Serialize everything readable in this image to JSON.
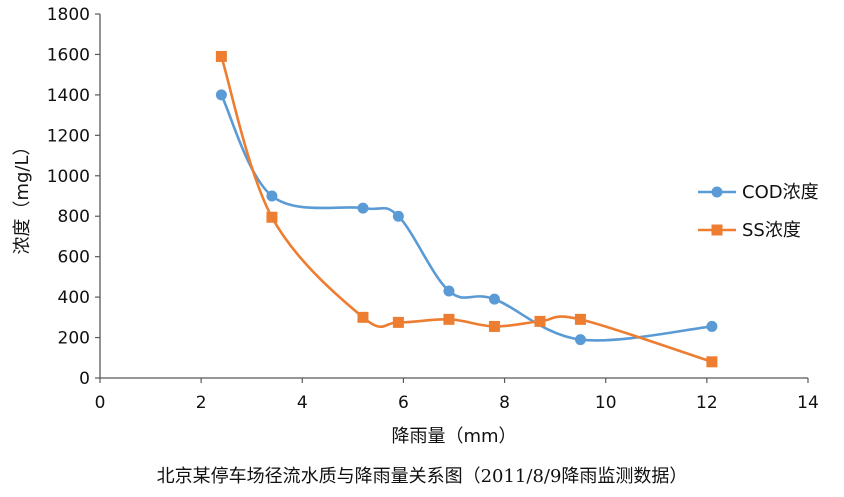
{
  "caption": "北京某停车场径流水质与降雨量关系图（2011/8/9降雨监测数据）",
  "chart_data": {
    "type": "line",
    "title": "",
    "xlabel": "降雨量（mm）",
    "ylabel": "浓度（mg/L）",
    "xlim": [
      0,
      14
    ],
    "ylim": [
      0,
      1800
    ],
    "xticks": [
      0,
      2,
      4,
      6,
      8,
      10,
      12,
      14
    ],
    "yticks": [
      0,
      200,
      400,
      600,
      800,
      1000,
      1200,
      1400,
      1600,
      1800
    ],
    "grid": false,
    "legend_position": "right",
    "smooth": true,
    "series": [
      {
        "name": "COD浓度",
        "color": "#5B9BD5",
        "marker": "circle",
        "x": [
          2.4,
          3.4,
          5.2,
          5.9,
          6.9,
          7.8,
          9.5,
          12.1
        ],
        "y": [
          1400,
          900,
          840,
          800,
          430,
          390,
          190,
          255
        ]
      },
      {
        "name": "SS浓度",
        "color": "#ED7D31",
        "marker": "square",
        "x": [
          2.4,
          3.4,
          5.2,
          5.9,
          6.9,
          7.8,
          8.7,
          9.5,
          12.1
        ],
        "y": [
          1590,
          795,
          300,
          275,
          290,
          255,
          280,
          290,
          80
        ]
      }
    ]
  }
}
